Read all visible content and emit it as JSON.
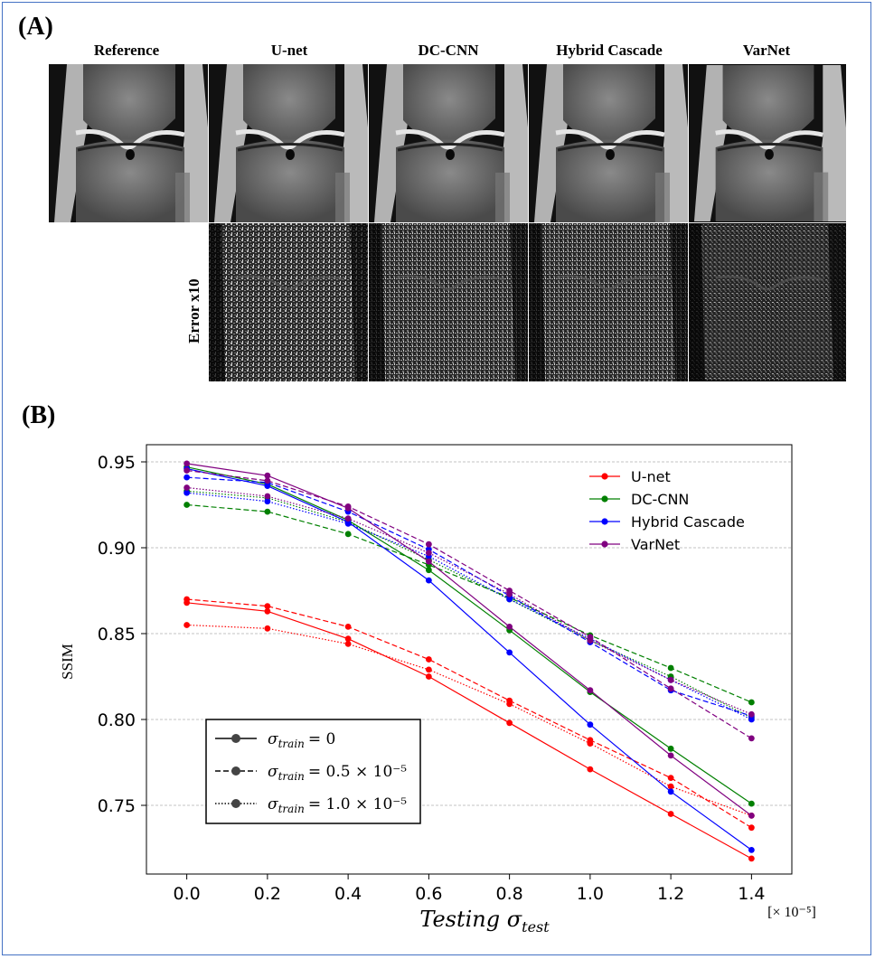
{
  "panel_a": {
    "label": "(A)",
    "columns": [
      "Reference",
      "U-net",
      "DC-CNN",
      "Hybrid Cascade",
      "VarNet"
    ],
    "error_row_label": "Error x10"
  },
  "panel_b": {
    "label": "(B)"
  },
  "chart_data": {
    "type": "line",
    "title": "",
    "xlabel": "Testing σ_test",
    "ylabel": "SSIM",
    "x_multiplier_label": "[× 10⁻⁵]",
    "x": [
      0.0,
      0.2,
      0.4,
      0.6,
      0.8,
      1.0,
      1.2,
      1.4
    ],
    "xlim": [
      -0.1,
      1.5
    ],
    "ylim": [
      0.71,
      0.96
    ],
    "xticks": [
      "0.0",
      "0.2",
      "0.4",
      "0.6",
      "0.8",
      "1.0",
      "1.2",
      "1.4"
    ],
    "yticks": [
      "0.75",
      "0.80",
      "0.85",
      "0.90",
      "0.95"
    ],
    "grid": "horizontal",
    "models": [
      {
        "name": "U-net",
        "color": "#ff0000",
        "series": {
          "0": [
            0.868,
            0.863,
            0.847,
            0.825,
            0.798,
            0.771,
            0.745,
            0.719
          ],
          "0.5": [
            0.87,
            0.866,
            0.854,
            0.835,
            0.811,
            0.788,
            0.766,
            0.737
          ],
          "1.0": [
            0.855,
            0.853,
            0.844,
            0.829,
            0.809,
            0.786,
            0.761,
            0.744
          ]
        }
      },
      {
        "name": "DC-CNN",
        "color": "#008000",
        "series": {
          "0": [
            0.947,
            0.937,
            0.916,
            0.887,
            0.852,
            0.816,
            0.783,
            0.751
          ],
          "0.5": [
            0.925,
            0.921,
            0.908,
            0.89,
            0.871,
            0.849,
            0.83,
            0.81
          ],
          "1.0": [
            0.933,
            0.929,
            0.915,
            0.893,
            0.87,
            0.846,
            0.825,
            0.801
          ]
        }
      },
      {
        "name": "Hybrid Cascade",
        "color": "#0000ff",
        "series": {
          "0": [
            0.946,
            0.936,
            0.915,
            0.881,
            0.839,
            0.797,
            0.758,
            0.724
          ],
          "0.5": [
            0.941,
            0.938,
            0.921,
            0.899,
            0.872,
            0.845,
            0.817,
            0.802
          ],
          "1.0": [
            0.932,
            0.927,
            0.914,
            0.895,
            0.87,
            0.847,
            0.823,
            0.8
          ]
        }
      },
      {
        "name": "VarNet",
        "color": "#800080",
        "series": {
          "0": [
            0.949,
            0.942,
            0.923,
            0.892,
            0.854,
            0.817,
            0.779,
            0.744
          ],
          "0.5": [
            0.945,
            0.939,
            0.924,
            0.902,
            0.875,
            0.848,
            0.818,
            0.789
          ],
          "1.0": [
            0.935,
            0.93,
            0.917,
            0.897,
            0.873,
            0.846,
            0.823,
            0.803
          ]
        }
      }
    ],
    "legend": {
      "placement": "top-right",
      "entries": [
        "U-net",
        "DC-CNN",
        "Hybrid Cascade",
        "VarNet"
      ],
      "style_placement": "bottom-left",
      "style_entries": [
        {
          "key": "0",
          "dash": "solid",
          "label_var": "σ",
          "label_sub": "train",
          "label_value": "= 0"
        },
        {
          "key": "0.5",
          "dash": "dashed",
          "label_var": "σ",
          "label_sub": "train",
          "label_value": "= 0.5 × 10⁻⁵"
        },
        {
          "key": "1.0",
          "dash": "dotted",
          "label_var": "σ",
          "label_sub": "train",
          "label_value": "= 1.0 × 10⁻⁵"
        }
      ]
    }
  }
}
